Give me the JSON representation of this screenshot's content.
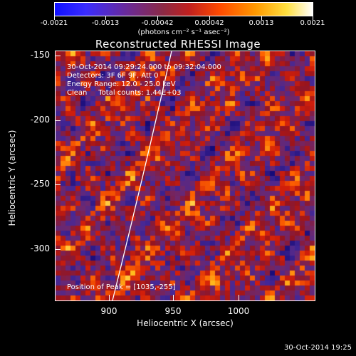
{
  "colorbar": {
    "tick_labels": [
      "-0.0021",
      "-0.0013",
      "-0.00042",
      "0.00042",
      "0.0013",
      "0.0021"
    ],
    "unit": "(photons cm⁻² s⁻¹ asec⁻²)"
  },
  "title": "Reconstructed RHESSI Image",
  "info": {
    "time_range": "30-Oct-2014 09:29:24.000 to 09:32:04.000",
    "detectors": "Detectors: 3F 6F 9F, Att 0",
    "energy": "Energy Range: 12.0 - 25.0 keV",
    "clean": "Clean     Total counts: 1.44E+03",
    "peak": "Position of Peak = [1035,-255]"
  },
  "axes": {
    "xlabel": "Heliocentric X (arcsec)",
    "ylabel": "Heliocentric Y (arcsec)",
    "xticks": [
      "900",
      "950",
      "1000"
    ],
    "yticks": [
      "-150",
      "-200",
      "-250",
      "-300"
    ],
    "xlim": [
      862,
      1046
    ],
    "ylim": [
      -340,
      -148
    ]
  },
  "timestamp": "30-Oct-2014 19:25",
  "colors": {
    "background": "#000000",
    "text": "#ffffff",
    "limb": "#ffffff"
  }
}
